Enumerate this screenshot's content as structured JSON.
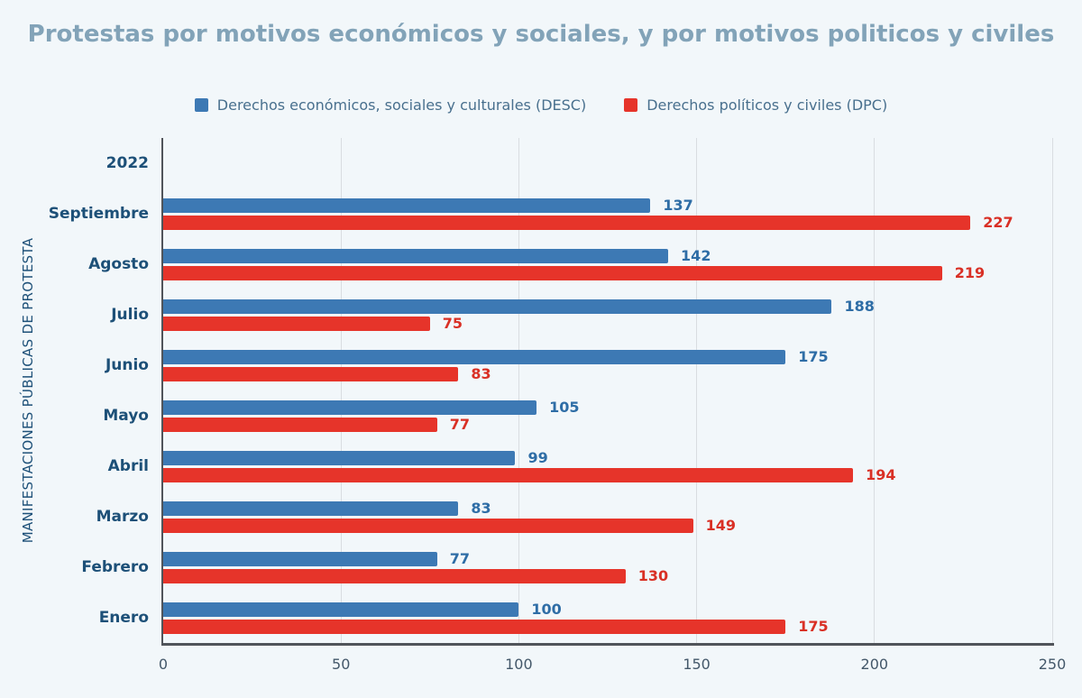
{
  "title": "Protestas por motivos económicos y sociales, y por motivos politicos y civiles",
  "y_axis_title": "MANIFESTACIONES PÚBLICAS DE PROTESTA",
  "colors": {
    "background": "#f2f7fa",
    "title_text": "#82a3b8",
    "category_text": "#1d5078",
    "tick_text": "#44586a",
    "legend_text": "#49708e",
    "gridline": "#d9dde1",
    "axis_line": "#50545a",
    "desc_bar": "#3d79b4",
    "dpc_bar": "#e6342a",
    "desc_value_text": "#2e6da6",
    "dpc_value_text": "#d93025"
  },
  "chart_data": {
    "type": "bar",
    "orientation": "horizontal",
    "title": "Protestas por motivos económicos y sociales, y por motivos politicos y civiles",
    "xlabel": "",
    "ylabel": "MANIFESTACIONES PÚBLICAS DE PROTESTA",
    "xlim": [
      0,
      250
    ],
    "x_ticks": [
      0,
      50,
      100,
      150,
      200,
      250
    ],
    "grid": true,
    "legend_position": "top",
    "categories": [
      "2022",
      "Septiembre",
      "Agosto",
      "Julio",
      "Junio",
      "Mayo",
      "Abril",
      "Marzo",
      "Febrero",
      "Enero"
    ],
    "series": [
      {
        "name": "Derechos económicos, sociales y culturales (DESC)",
        "key": "desc",
        "values": [
          null,
          137,
          142,
          188,
          175,
          105,
          99,
          83,
          77,
          100
        ]
      },
      {
        "name": "Derechos políticos y civiles (DPC)",
        "key": "dpc",
        "values": [
          null,
          227,
          219,
          75,
          83,
          77,
          194,
          149,
          130,
          175
        ]
      }
    ]
  }
}
